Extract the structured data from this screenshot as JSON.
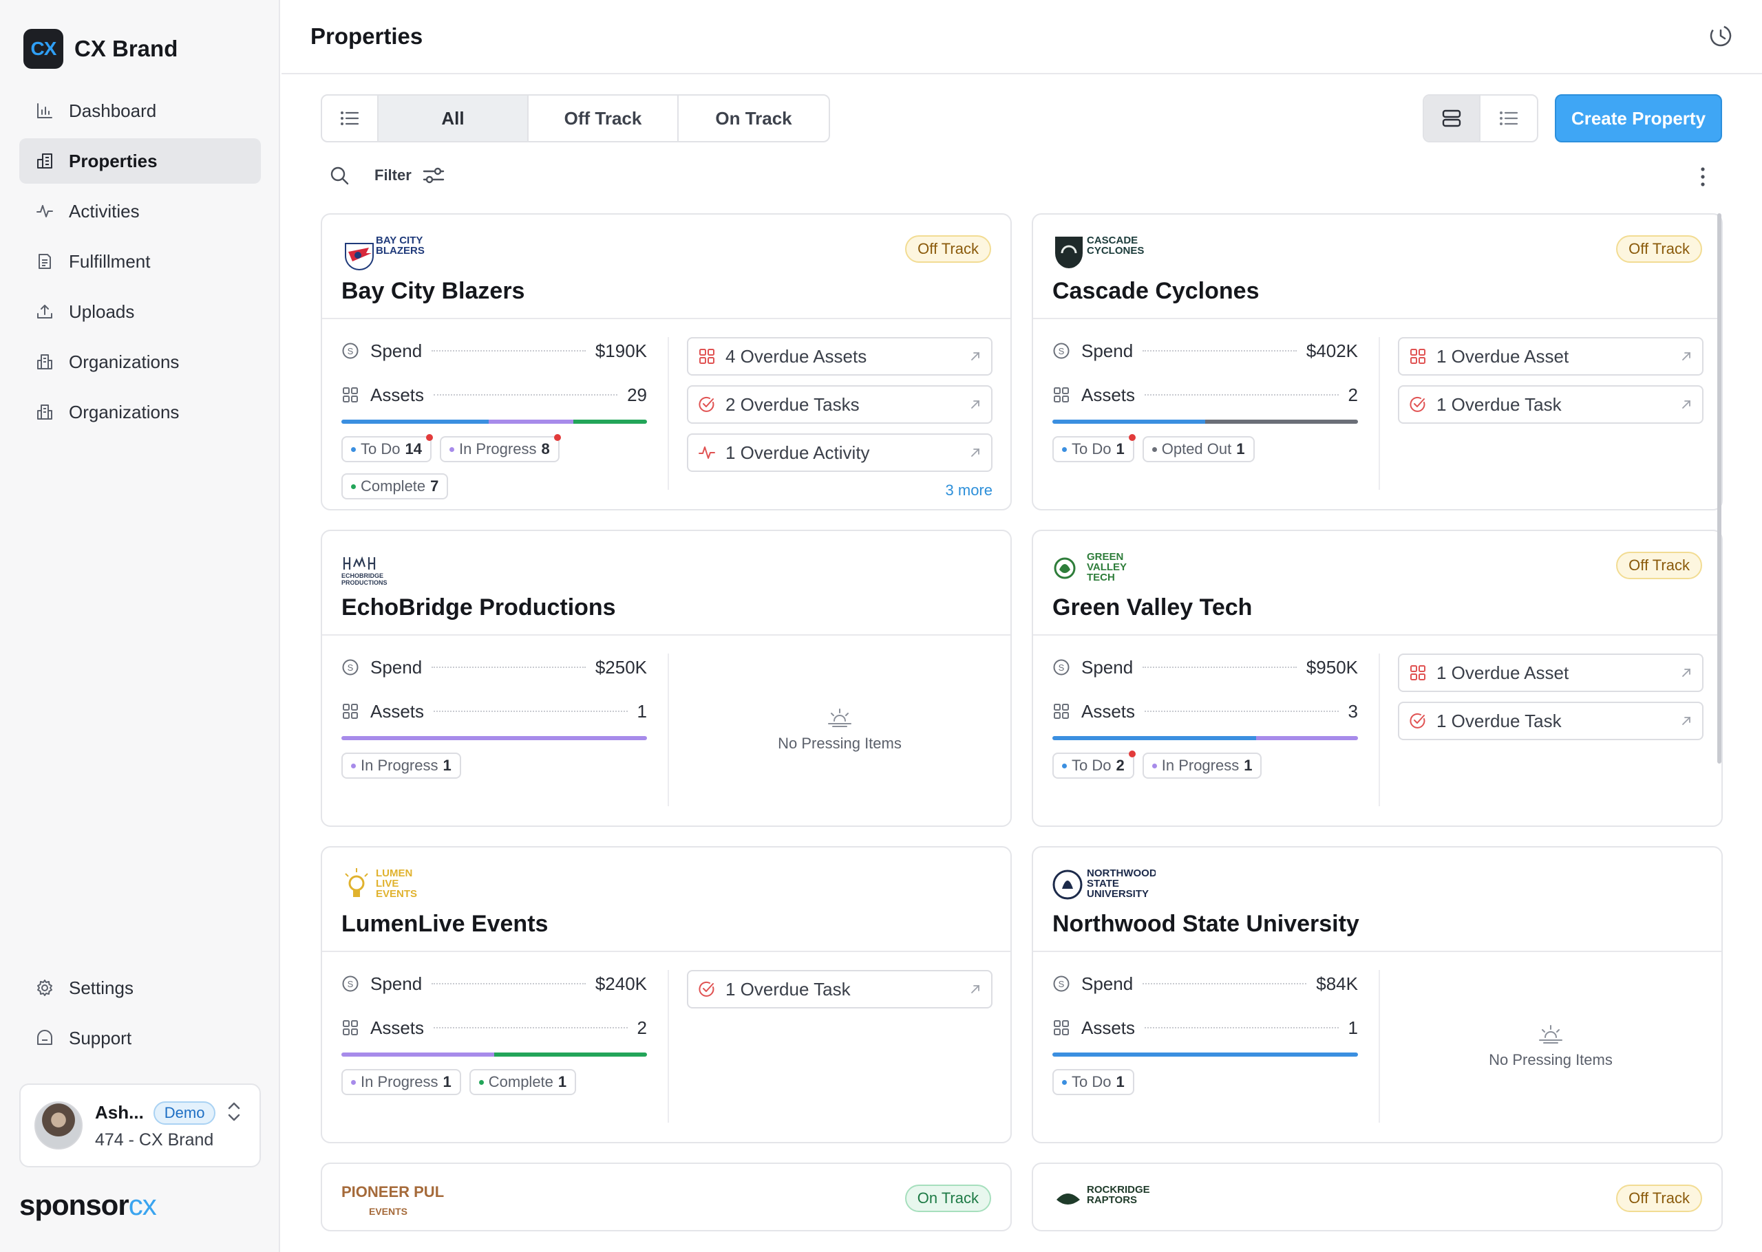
{
  "brand": {
    "logo_text": "CX",
    "name": "CX Brand"
  },
  "sidebar": {
    "items": [
      {
        "label": "Dashboard",
        "icon": "bar-chart-icon"
      },
      {
        "label": "Properties",
        "icon": "building-icon",
        "active": true
      },
      {
        "label": "Activities",
        "icon": "activity-icon"
      },
      {
        "label": "Fulfillment",
        "icon": "document-icon"
      },
      {
        "label": "Uploads",
        "icon": "upload-icon"
      },
      {
        "label": "Organizations",
        "icon": "organization-icon"
      },
      {
        "label": "Organizations",
        "icon": "organization-icon"
      }
    ],
    "bottom": [
      {
        "label": "Settings",
        "icon": "gear-icon"
      },
      {
        "label": "Support",
        "icon": "support-icon"
      }
    ],
    "user": {
      "name": "Ash...",
      "badge": "Demo",
      "sub": "474 - CX Brand"
    },
    "footer_logo": {
      "part1": "sponsor",
      "part2": "cx"
    }
  },
  "header": {
    "title": "Properties"
  },
  "filters": {
    "tabs": [
      "All",
      "Off Track",
      "On Track"
    ],
    "active_tab": "All",
    "filter_label": "Filter",
    "create_label": "Create Property"
  },
  "colors": {
    "todo": "#3b8fe0",
    "in_progress": "#a78bea",
    "complete": "#23a559",
    "opted_out": "#6b6f78",
    "overdue_red": "#e05252",
    "accent": "#3fa6f5"
  },
  "cards": [
    {
      "name": "Bay City Blazers",
      "logo": {
        "lines": [
          "BAY CITY",
          "BLAZERS"
        ],
        "color": "#1f3a7a"
      },
      "status": "Off Track",
      "spend": "$190K",
      "assets": "29",
      "bar": [
        {
          "status": "todo",
          "fraction": 0.483
        },
        {
          "status": "in_progress",
          "fraction": 0.276
        },
        {
          "status": "complete",
          "fraction": 0.241
        }
      ],
      "chips": [
        {
          "label": "To Do",
          "count": "14",
          "status": "todo",
          "flag": true
        },
        {
          "label": "In Progress",
          "count": "8",
          "status": "in_progress",
          "flag": true
        },
        {
          "label": "Complete",
          "count": "7",
          "status": "complete",
          "flag": false
        }
      ],
      "overdue": [
        {
          "label": "4 Overdue Assets",
          "icon": "grid-icon"
        },
        {
          "label": "2 Overdue Tasks",
          "icon": "check-circle-icon"
        },
        {
          "label": "1 Overdue Activity",
          "icon": "activity-icon"
        }
      ],
      "more": "3 more"
    },
    {
      "name": "Cascade Cyclones",
      "logo": {
        "lines": [
          "CASCADE",
          "CYCLONES"
        ],
        "color": "#1b3b3a"
      },
      "status": "Off Track",
      "spend": "$402K",
      "assets": "2",
      "bar": [
        {
          "status": "todo",
          "fraction": 0.5
        },
        {
          "status": "opted_out",
          "fraction": 0.5
        }
      ],
      "chips": [
        {
          "label": "To Do",
          "count": "1",
          "status": "todo",
          "flag": true
        },
        {
          "label": "Opted Out",
          "count": "1",
          "status": "opted_out",
          "flag": false
        }
      ],
      "overdue": [
        {
          "label": "1 Overdue Asset",
          "icon": "grid-icon"
        },
        {
          "label": "1 Overdue Task",
          "icon": "check-circle-icon"
        }
      ],
      "more": ""
    },
    {
      "name": "EchoBridge Productions",
      "logo": {
        "lines": [
          "ECHOBRIDGE",
          "PRODUCTIONS"
        ],
        "color": "#2d3b55"
      },
      "status": "",
      "spend": "$250K",
      "assets": "1",
      "bar": [
        {
          "status": "in_progress",
          "fraction": 1.0
        }
      ],
      "chips": [
        {
          "label": "In Progress",
          "count": "1",
          "status": "in_progress",
          "flag": false
        }
      ],
      "overdue": [],
      "more": "",
      "empty_text": "No Pressing Items"
    },
    {
      "name": "Green Valley Tech",
      "logo": {
        "lines": [
          "GREEN",
          "VALLEY",
          "TECH"
        ],
        "color": "#2e7d3a"
      },
      "status": "Off Track",
      "spend": "$950K",
      "assets": "3",
      "bar": [
        {
          "status": "todo",
          "fraction": 0.667
        },
        {
          "status": "in_progress",
          "fraction": 0.333
        }
      ],
      "chips": [
        {
          "label": "To Do",
          "count": "2",
          "status": "todo",
          "flag": true
        },
        {
          "label": "In Progress",
          "count": "1",
          "status": "in_progress",
          "flag": false
        }
      ],
      "overdue": [
        {
          "label": "1 Overdue Asset",
          "icon": "grid-icon"
        },
        {
          "label": "1 Overdue Task",
          "icon": "check-circle-icon"
        }
      ],
      "more": ""
    },
    {
      "name": "LumenLive Events",
      "logo": {
        "lines": [
          "LUMEN",
          "LIVE",
          "EVENTS"
        ],
        "color": "#e0b22e"
      },
      "status": "",
      "spend": "$240K",
      "assets": "2",
      "bar": [
        {
          "status": "in_progress",
          "fraction": 0.5
        },
        {
          "status": "complete",
          "fraction": 0.5
        }
      ],
      "chips": [
        {
          "label": "In Progress",
          "count": "1",
          "status": "in_progress",
          "flag": false
        },
        {
          "label": "Complete",
          "count": "1",
          "status": "complete",
          "flag": false
        }
      ],
      "overdue": [
        {
          "label": "1 Overdue Task",
          "icon": "check-circle-icon"
        }
      ],
      "more": ""
    },
    {
      "name": "Northwood State University",
      "logo": {
        "lines": [
          "NORTHWOOD",
          "STATE",
          "UNIVERSITY"
        ],
        "color": "#1c2a4a"
      },
      "status": "",
      "spend": "$84K",
      "assets": "1",
      "bar": [
        {
          "status": "todo",
          "fraction": 1.0
        }
      ],
      "chips": [
        {
          "label": "To Do",
          "count": "1",
          "status": "todo",
          "flag": false
        }
      ],
      "overdue": [],
      "more": "",
      "empty_text": "No Pressing Items"
    },
    {
      "name": "",
      "logo": {
        "lines": [
          "PIONEER PULSE",
          "EVENTS"
        ],
        "color": "#a56a3a"
      },
      "status": "On Track",
      "spend": "",
      "assets": "",
      "bar": [],
      "chips": [],
      "overdue": [],
      "more": ""
    },
    {
      "name": "",
      "logo": {
        "lines": [
          "ROCKRIDGE",
          "RAPTORS"
        ],
        "color": "#1f3b2a"
      },
      "status": "Off Track",
      "spend": "",
      "assets": "",
      "bar": [],
      "chips": [],
      "overdue": [],
      "more": ""
    }
  ],
  "labels": {
    "spend": "Spend",
    "assets": "Assets"
  }
}
